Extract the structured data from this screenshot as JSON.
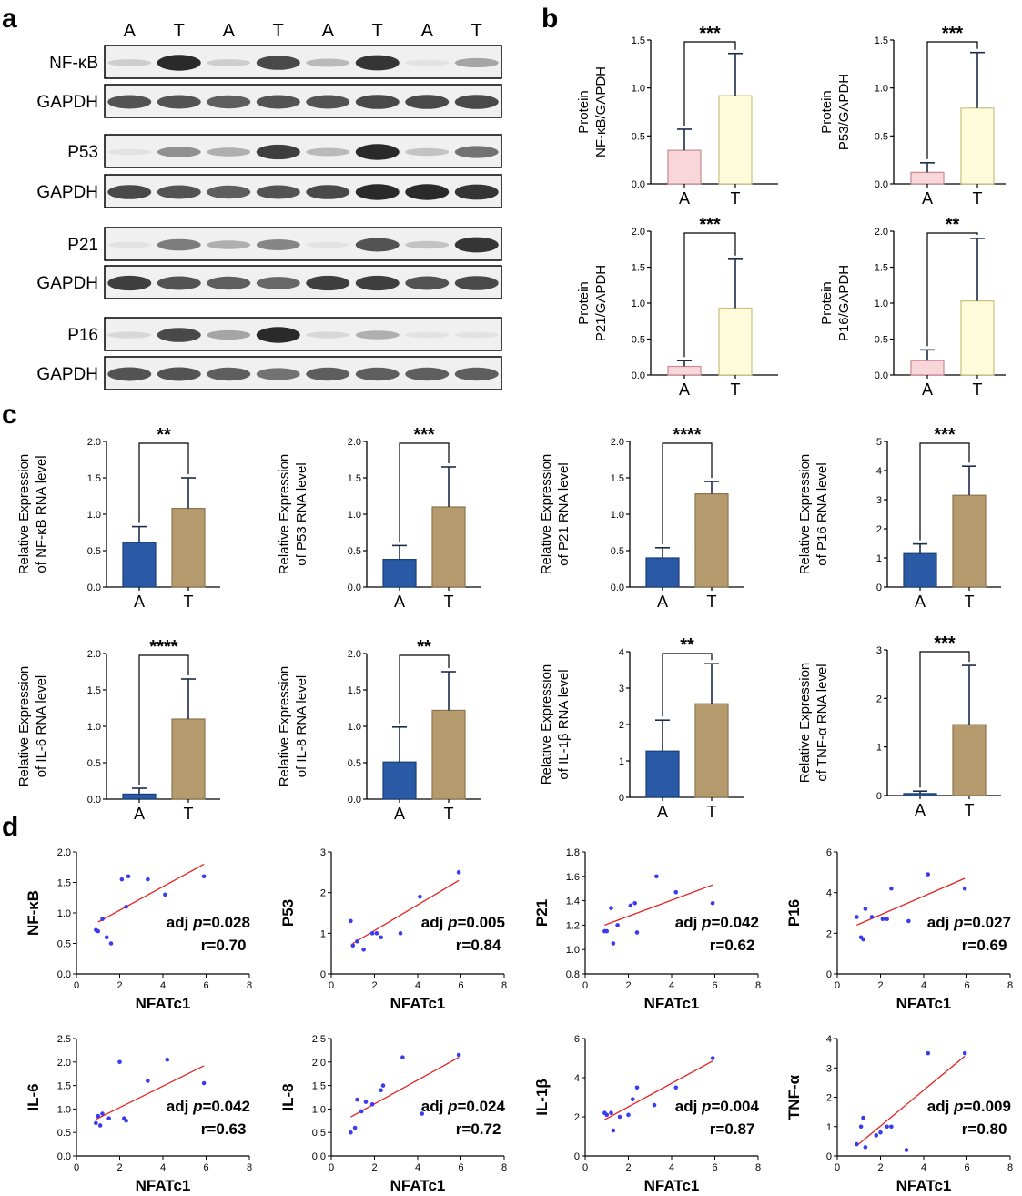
{
  "panel_labels": {
    "a": "a",
    "b": "b",
    "c": "c",
    "d": "d"
  },
  "colors": {
    "bar_A_protein": "#f9d6d9",
    "bar_T_protein": "#fdfbd9",
    "bar_A_rna": "#2a5aa6",
    "bar_T_rna": "#b59a6e",
    "scatter_point": "#3b3bf0",
    "fit_line": "#e82020"
  },
  "western_blot": {
    "lanes": [
      "A",
      "T",
      "A",
      "T",
      "A",
      "T",
      "A",
      "T"
    ],
    "rows": [
      {
        "label": "NF-κB",
        "intensities": [
          0.15,
          0.95,
          0.15,
          0.8,
          0.25,
          0.9,
          0.05,
          0.35
        ]
      },
      {
        "label": "GAPDH",
        "intensities": [
          0.75,
          0.75,
          0.7,
          0.75,
          0.75,
          0.8,
          0.8,
          0.8
        ]
      },
      {
        "label": "P53",
        "intensities": [
          0.05,
          0.45,
          0.3,
          0.85,
          0.25,
          0.95,
          0.2,
          0.6
        ]
      },
      {
        "label": "GAPDH",
        "intensities": [
          0.8,
          0.75,
          0.7,
          0.75,
          0.8,
          0.95,
          0.95,
          0.9
        ]
      },
      {
        "label": "P21",
        "intensities": [
          0.05,
          0.55,
          0.3,
          0.5,
          0.05,
          0.75,
          0.2,
          0.9
        ]
      },
      {
        "label": "GAPDH",
        "intensities": [
          0.85,
          0.75,
          0.7,
          0.65,
          0.85,
          0.85,
          0.75,
          0.8
        ]
      },
      {
        "label": "P16",
        "intensities": [
          0.1,
          0.8,
          0.35,
          0.95,
          0.1,
          0.3,
          0.05,
          0.05
        ]
      },
      {
        "label": "GAPDH",
        "intensities": [
          0.75,
          0.75,
          0.7,
          0.6,
          0.7,
          0.7,
          0.7,
          0.7
        ]
      }
    ]
  },
  "chart_data": [
    {
      "panel": "b",
      "type": "bar",
      "categories": [
        "A",
        "T"
      ],
      "values": [
        0.35,
        0.92
      ],
      "errors": [
        0.22,
        0.44
      ],
      "ylim": [
        0,
        1.5
      ],
      "yticks": [
        "0.0",
        "0.5",
        "1.0",
        "1.5"
      ],
      "ylabel": [
        "Protein",
        "NF-κB/GAPDH"
      ],
      "significance": "***"
    },
    {
      "panel": "b",
      "type": "bar",
      "categories": [
        "A",
        "T"
      ],
      "values": [
        0.12,
        0.79
      ],
      "errors": [
        0.1,
        0.58
      ],
      "ylim": [
        0,
        1.5
      ],
      "yticks": [
        "0.0",
        "0.5",
        "1.0",
        "1.5"
      ],
      "ylabel": [
        "Protein",
        "P53/GAPDH"
      ],
      "significance": "***"
    },
    {
      "panel": "b",
      "type": "bar",
      "categories": [
        "A",
        "T"
      ],
      "values": [
        0.12,
        0.93
      ],
      "errors": [
        0.08,
        0.68
      ],
      "ylim": [
        0,
        2.0
      ],
      "yticks": [
        "0.0",
        "0.5",
        "1.0",
        "1.5",
        "2.0"
      ],
      "ylabel": [
        "Protein",
        "P21/GAPDH"
      ],
      "significance": "***"
    },
    {
      "panel": "b",
      "type": "bar",
      "categories": [
        "A",
        "T"
      ],
      "values": [
        0.2,
        1.03
      ],
      "errors": [
        0.15,
        0.87
      ],
      "ylim": [
        0,
        2.0
      ],
      "yticks": [
        "0.0",
        "0.5",
        "1.0",
        "1.5",
        "2.0"
      ],
      "ylabel": [
        "Protein",
        "P16/GAPDH"
      ],
      "significance": "**"
    },
    {
      "panel": "c",
      "type": "bar",
      "categories": [
        "A",
        "T"
      ],
      "values": [
        0.61,
        1.08
      ],
      "errors": [
        0.22,
        0.42
      ],
      "ylim": [
        0,
        2.0
      ],
      "yticks": [
        "0.0",
        "0.5",
        "1.0",
        "1.5",
        "2.0"
      ],
      "ylabel": [
        "Relative Expression",
        "of NF-κB RNA level"
      ],
      "significance": "**"
    },
    {
      "panel": "c",
      "type": "bar",
      "categories": [
        "A",
        "T"
      ],
      "values": [
        0.38,
        1.1
      ],
      "errors": [
        0.19,
        0.55
      ],
      "ylim": [
        0,
        2.0
      ],
      "yticks": [
        "0.0",
        "0.5",
        "1.0",
        "1.5",
        "2.0"
      ],
      "ylabel": [
        "Relative Expression",
        "of P53 RNA level"
      ],
      "significance": "***"
    },
    {
      "panel": "c",
      "type": "bar",
      "categories": [
        "A",
        "T"
      ],
      "values": [
        0.4,
        1.28
      ],
      "errors": [
        0.14,
        0.17
      ],
      "ylim": [
        0,
        2.0
      ],
      "yticks": [
        "0.0",
        "0.5",
        "1.0",
        "1.5",
        "2.0"
      ],
      "ylabel": [
        "Relative Expression",
        "of P21 RNA level"
      ],
      "significance": "****"
    },
    {
      "panel": "c",
      "type": "bar",
      "categories": [
        "A",
        "T"
      ],
      "values": [
        1.15,
        3.15
      ],
      "errors": [
        0.33,
        1.0
      ],
      "ylim": [
        0,
        5
      ],
      "yticks": [
        "0",
        "1",
        "2",
        "3",
        "4",
        "5"
      ],
      "ylabel": [
        "Relative Expression",
        "of P16 RNA level"
      ],
      "significance": "***"
    },
    {
      "panel": "c",
      "type": "bar",
      "categories": [
        "A",
        "T"
      ],
      "values": [
        0.07,
        1.1
      ],
      "errors": [
        0.08,
        0.55
      ],
      "ylim": [
        0,
        2.0
      ],
      "yticks": [
        "0.0",
        "0.5",
        "1.0",
        "1.5",
        "2.0"
      ],
      "ylabel": [
        "Relative Expression",
        "of IL-6 RNA level"
      ],
      "significance": "****"
    },
    {
      "panel": "c",
      "type": "bar",
      "categories": [
        "A",
        "T"
      ],
      "values": [
        0.51,
        1.22
      ],
      "errors": [
        0.48,
        0.53
      ],
      "ylim": [
        0,
        2.0
      ],
      "yticks": [
        "0.0",
        "0.5",
        "1.0",
        "1.5",
        "2.0"
      ],
      "ylabel": [
        "Relative Expression",
        "of IL-8 RNA level"
      ],
      "significance": "**"
    },
    {
      "panel": "c",
      "type": "bar",
      "categories": [
        "A",
        "T"
      ],
      "values": [
        1.27,
        2.57
      ],
      "errors": [
        0.85,
        1.1
      ],
      "ylim": [
        0,
        4
      ],
      "yticks": [
        "0",
        "1",
        "2",
        "3",
        "4"
      ],
      "ylabel": [
        "Relative Expression",
        "of IL-1β RNA level"
      ],
      "significance": "**"
    },
    {
      "panel": "c",
      "type": "bar",
      "categories": [
        "A",
        "T"
      ],
      "values": [
        0.04,
        1.46
      ],
      "errors": [
        0.05,
        1.22
      ],
      "ylim": [
        0,
        3
      ],
      "yticks": [
        "0",
        "1",
        "2",
        "3"
      ],
      "ylabel": [
        "Relative Expression",
        "of TNF-α RNA level"
      ],
      "significance": "***"
    },
    {
      "panel": "d",
      "type": "scatter",
      "ylabel": "NF-κB",
      "xlabel": "NFATc1",
      "xlim": [
        0,
        8
      ],
      "ylim": [
        0.0,
        2.0
      ],
      "xticks": [
        "0",
        "2",
        "4",
        "6",
        "8"
      ],
      "yticks": [
        "0.0",
        "0.5",
        "1.0",
        "1.5",
        "2.0"
      ],
      "adj_p": "=0.028",
      "r": "r=0.70",
      "points": [
        [
          0.9,
          0.72
        ],
        [
          1.0,
          0.7
        ],
        [
          1.2,
          0.9
        ],
        [
          1.4,
          0.6
        ],
        [
          1.6,
          0.5
        ],
        [
          2.1,
          1.55
        ],
        [
          2.3,
          1.1
        ],
        [
          2.4,
          1.6
        ],
        [
          3.3,
          1.55
        ],
        [
          4.1,
          1.3
        ],
        [
          5.9,
          1.6
        ]
      ],
      "fit": [
        [
          1.0,
          0.85
        ],
        [
          5.9,
          1.8
        ]
      ]
    },
    {
      "panel": "d",
      "type": "scatter",
      "ylabel": "P53",
      "xlabel": "NFATc1",
      "xlim": [
        0,
        8
      ],
      "ylim": [
        0,
        3
      ],
      "xticks": [
        "0",
        "2",
        "4",
        "6",
        "8"
      ],
      "yticks": [
        "0",
        "1",
        "2",
        "3"
      ],
      "adj_p": "=0.005",
      "r": "r=0.84",
      "points": [
        [
          0.9,
          1.3
        ],
        [
          1.0,
          0.7
        ],
        [
          1.2,
          0.8
        ],
        [
          1.5,
          0.6
        ],
        [
          1.9,
          1.0
        ],
        [
          2.1,
          1.0
        ],
        [
          2.3,
          0.9
        ],
        [
          3.2,
          1.0
        ],
        [
          4.1,
          1.9
        ],
        [
          5.9,
          2.5
        ]
      ],
      "fit": [
        [
          1.0,
          0.75
        ],
        [
          5.9,
          2.3
        ]
      ]
    },
    {
      "panel": "d",
      "type": "scatter",
      "ylabel": "P21",
      "xlabel": "NFATc1",
      "xlim": [
        0,
        8
      ],
      "ylim": [
        0.8,
        1.8
      ],
      "xticks": [
        "0",
        "2",
        "4",
        "6",
        "8"
      ],
      "yticks": [
        "0.8",
        "1.0",
        "1.2",
        "1.4",
        "1.6",
        "1.8"
      ],
      "adj_p": "=0.042",
      "r": "r=0.62",
      "points": [
        [
          0.9,
          1.15
        ],
        [
          1.0,
          1.15
        ],
        [
          1.2,
          1.34
        ],
        [
          1.3,
          1.05
        ],
        [
          1.5,
          1.2
        ],
        [
          2.1,
          1.36
        ],
        [
          2.3,
          1.38
        ],
        [
          2.4,
          1.14
        ],
        [
          3.3,
          1.6
        ],
        [
          4.2,
          1.47
        ],
        [
          5.9,
          1.38
        ]
      ],
      "fit": [
        [
          0.9,
          1.2
        ],
        [
          5.9,
          1.53
        ]
      ]
    },
    {
      "panel": "d",
      "type": "scatter",
      "ylabel": "P16",
      "xlabel": "NFATc1",
      "xlim": [
        0,
        8
      ],
      "ylim": [
        0,
        6
      ],
      "xticks": [
        "0",
        "2",
        "4",
        "6",
        "8"
      ],
      "yticks": [
        "0",
        "2",
        "4",
        "6"
      ],
      "adj_p": "=0.027",
      "r": "r=0.69",
      "points": [
        [
          0.9,
          2.8
        ],
        [
          1.1,
          1.8
        ],
        [
          1.2,
          1.7
        ],
        [
          1.3,
          3.2
        ],
        [
          1.6,
          2.8
        ],
        [
          2.1,
          2.7
        ],
        [
          2.3,
          2.7
        ],
        [
          2.5,
          4.2
        ],
        [
          3.3,
          2.6
        ],
        [
          4.2,
          4.9
        ],
        [
          5.9,
          4.2
        ]
      ],
      "fit": [
        [
          0.9,
          2.4
        ],
        [
          5.9,
          4.7
        ]
      ]
    },
    {
      "panel": "d",
      "type": "scatter",
      "ylabel": "IL-6",
      "xlabel": "NFATc1",
      "xlim": [
        0,
        8
      ],
      "ylim": [
        0.0,
        2.5
      ],
      "xticks": [
        "0",
        "2",
        "4",
        "6",
        "8"
      ],
      "yticks": [
        "0.0",
        "0.5",
        "1.0",
        "1.5",
        "2.0",
        "2.5"
      ],
      "adj_p": "=0.042",
      "r": "r=0.63",
      "points": [
        [
          0.9,
          0.7
        ],
        [
          1.0,
          0.85
        ],
        [
          1.1,
          0.65
        ],
        [
          1.2,
          0.9
        ],
        [
          1.5,
          0.8
        ],
        [
          2.0,
          2.0
        ],
        [
          2.2,
          0.8
        ],
        [
          2.3,
          0.75
        ],
        [
          3.3,
          1.6
        ],
        [
          4.2,
          2.05
        ],
        [
          5.9,
          1.55
        ]
      ],
      "fit": [
        [
          0.9,
          0.78
        ],
        [
          5.9,
          1.92
        ]
      ]
    },
    {
      "panel": "d",
      "type": "scatter",
      "ylabel": "IL-8",
      "xlabel": "NFATc1",
      "xlim": [
        0,
        8
      ],
      "ylim": [
        0.0,
        2.5
      ],
      "xticks": [
        "0",
        "2",
        "4",
        "6",
        "8"
      ],
      "yticks": [
        "0.0",
        "0.5",
        "1.0",
        "1.5",
        "2.0",
        "2.5"
      ],
      "adj_p": "=0.024",
      "r": "r=0.72",
      "points": [
        [
          0.9,
          0.5
        ],
        [
          1.1,
          0.6
        ],
        [
          1.2,
          1.2
        ],
        [
          1.4,
          0.95
        ],
        [
          1.6,
          1.15
        ],
        [
          1.9,
          1.1
        ],
        [
          2.3,
          1.4
        ],
        [
          2.4,
          1.5
        ],
        [
          3.3,
          2.1
        ],
        [
          4.2,
          0.9
        ],
        [
          5.9,
          2.15
        ]
      ],
      "fit": [
        [
          0.9,
          0.83
        ],
        [
          5.9,
          2.1
        ]
      ]
    },
    {
      "panel": "d",
      "type": "scatter",
      "ylabel": "IL-1β",
      "xlabel": "NFATc1",
      "xlim": [
        0,
        8
      ],
      "ylim": [
        0,
        6
      ],
      "xticks": [
        "0",
        "2",
        "4",
        "6",
        "8"
      ],
      "yticks": [
        "0",
        "2",
        "4",
        "6"
      ],
      "adj_p": "=0.004",
      "r": "r=0.87",
      "points": [
        [
          0.9,
          2.2
        ],
        [
          1.0,
          2.1
        ],
        [
          1.2,
          2.2
        ],
        [
          1.3,
          1.3
        ],
        [
          1.6,
          2.0
        ],
        [
          2.0,
          2.1
        ],
        [
          2.2,
          2.9
        ],
        [
          2.4,
          3.5
        ],
        [
          3.2,
          2.6
        ],
        [
          4.2,
          3.5
        ],
        [
          5.9,
          5.0
        ]
      ],
      "fit": [
        [
          0.9,
          1.85
        ],
        [
          5.9,
          4.85
        ]
      ]
    },
    {
      "panel": "d",
      "type": "scatter",
      "ylabel": "TNF-α",
      "xlabel": "NFATc1",
      "xlim": [
        0,
        8
      ],
      "ylim": [
        0,
        4
      ],
      "xticks": [
        "0",
        "2",
        "4",
        "6",
        "8"
      ],
      "yticks": [
        "0",
        "1",
        "2",
        "3",
        "4"
      ],
      "adj_p": "=0.009",
      "r": "r=0.80",
      "points": [
        [
          0.9,
          0.4
        ],
        [
          1.1,
          1.0
        ],
        [
          1.2,
          1.3
        ],
        [
          1.3,
          0.3
        ],
        [
          1.8,
          0.7
        ],
        [
          2.0,
          0.8
        ],
        [
          2.3,
          1.0
        ],
        [
          2.5,
          1.0
        ],
        [
          3.2,
          0.2
        ],
        [
          4.2,
          3.5
        ],
        [
          5.9,
          3.5
        ]
      ],
      "fit": [
        [
          0.9,
          0.35
        ],
        [
          5.9,
          3.4
        ]
      ]
    }
  ],
  "stat_prefix": "adj ",
  "stat_p": "p"
}
